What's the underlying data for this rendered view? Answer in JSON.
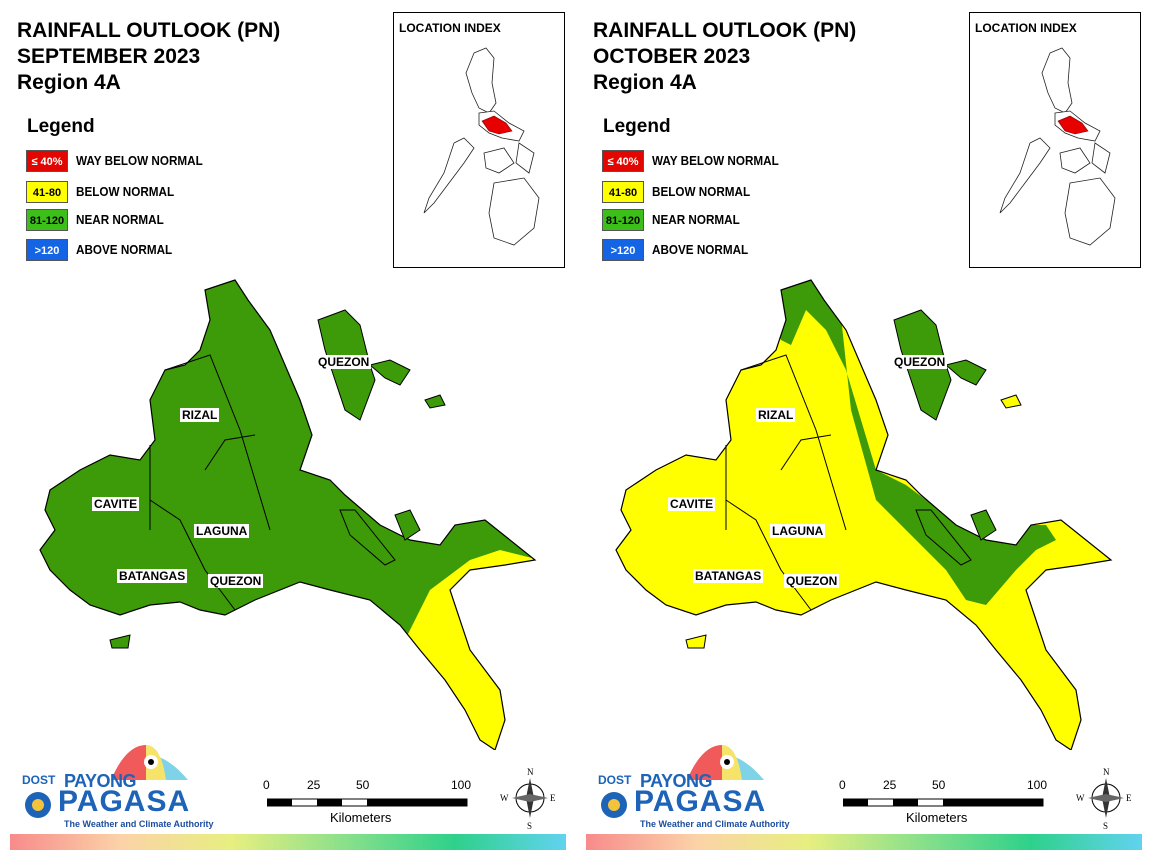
{
  "legend": {
    "title": "Legend",
    "items": [
      {
        "code": "≤ 40%",
        "label": "WAY BELOW NORMAL",
        "color": "#e10600",
        "text_color": "#ffffff"
      },
      {
        "code": "41-80",
        "label": "BELOW NORMAL",
        "color": "#ffff00",
        "text_color": "#000000"
      },
      {
        "code": "81-120",
        "label": "NEAR NORMAL",
        "color": "#3dbf1a",
        "text_color": "#000000"
      },
      {
        "code": ">120",
        "label": "ABOVE NORMAL",
        "color": "#1464e6",
        "text_color": "#ffffff"
      }
    ]
  },
  "colors": {
    "near_normal": "#3d9a08",
    "below_normal": "#ffff00",
    "highlight": "#e60000"
  },
  "inset_label": "LOCATION INDEX",
  "provinces": [
    "QUEZON",
    "RIZAL",
    "CAVITE",
    "LAGUNA",
    "BATANGAS",
    "QUEZON"
  ],
  "scalebar": {
    "ticks": [
      "0",
      "25",
      "50",
      "100"
    ],
    "unit": "Kilometers"
  },
  "compass": {
    "n": "N",
    "s": "S",
    "e": "E",
    "w": "W"
  },
  "branding": {
    "dost": "DOST",
    "payong": "PAYONG",
    "pagasa": "PAGASA",
    "tagline": "The Weather and Climate Authority"
  },
  "panels": [
    {
      "title_lines": [
        "RAINFALL OUTLOOK (PN)",
        "SEPTEMBER 2023",
        "Region 4A"
      ],
      "scenario": "september"
    },
    {
      "title_lines": [
        "RAINFALL OUTLOOK (PN)",
        "OCTOBER 2023",
        "Region 4A"
      ],
      "scenario": "october"
    }
  ]
}
